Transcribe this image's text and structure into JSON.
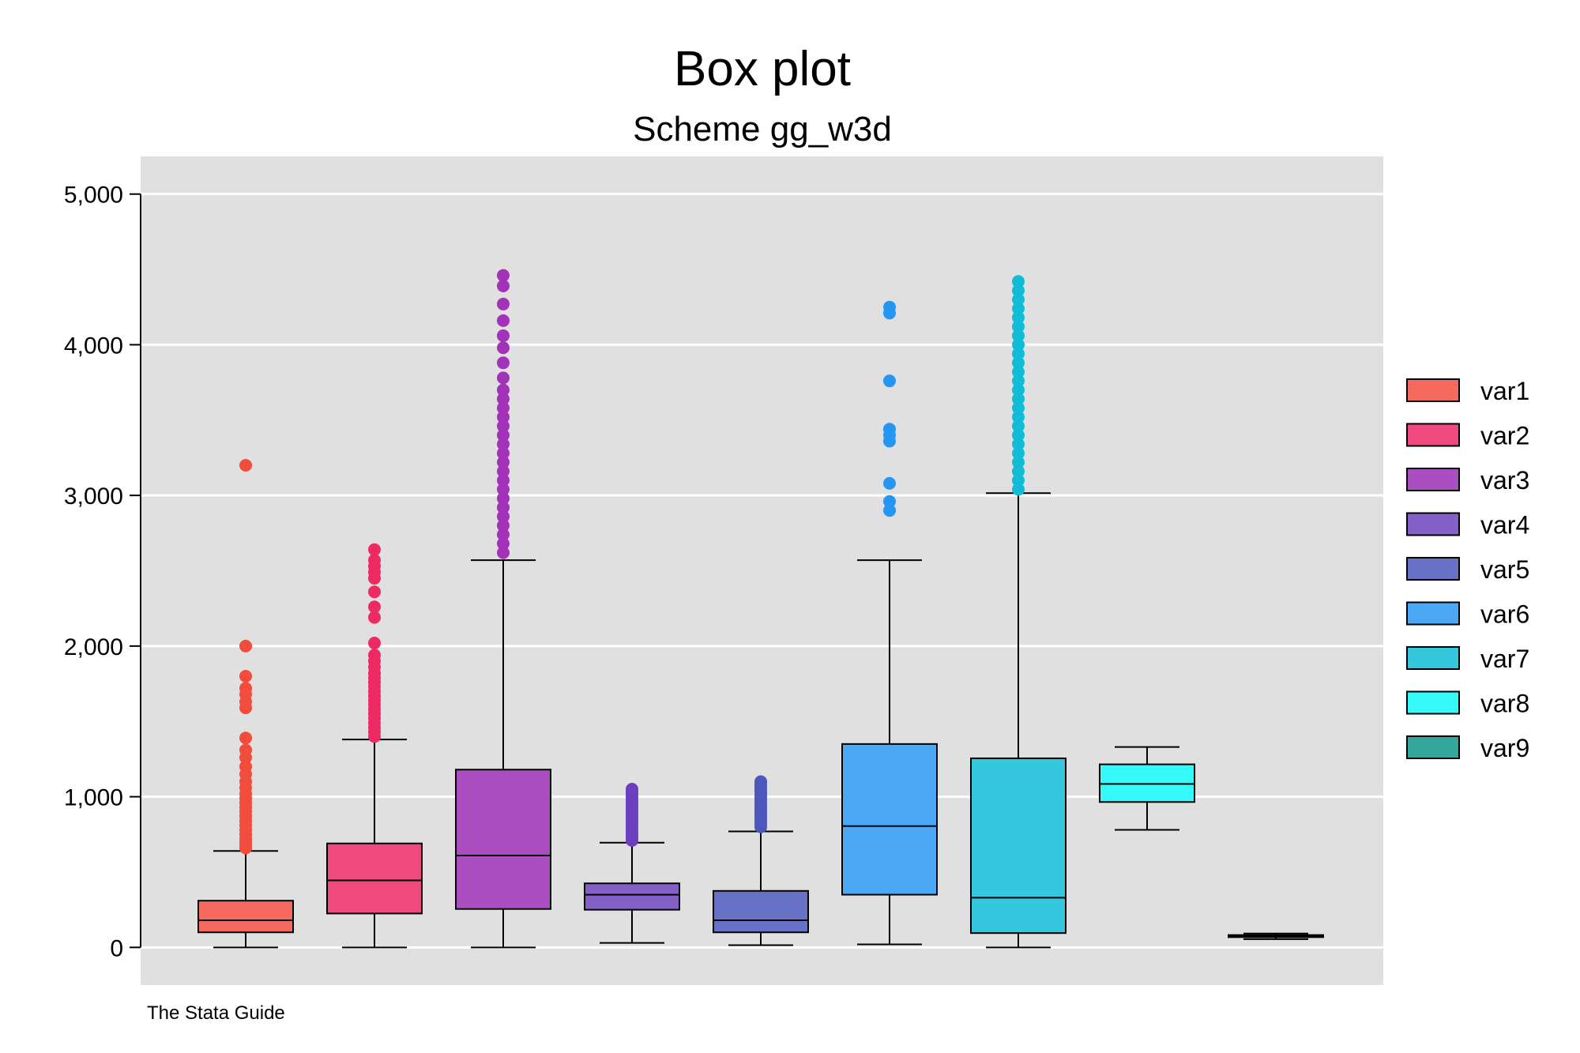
{
  "chart_data": {
    "type": "box",
    "title": "Box plot",
    "subtitle": "Scheme gg_w3d",
    "note": "The Stata Guide",
    "ylim": [
      -250,
      5250
    ],
    "yticks": [
      0,
      1000,
      2000,
      3000,
      4000,
      5000
    ],
    "ytick_labels": [
      "0",
      "1,000",
      "2,000",
      "3,000",
      "4,000",
      "5,000"
    ],
    "grid": true,
    "legend_position": "right",
    "colors": {
      "panel_bg": "#e0e0e0",
      "gridline": "#ffffff",
      "axis": "#000000"
    },
    "series": [
      {
        "name": "var1",
        "box_color": "#f5695e",
        "point_color": "#f24c3d",
        "min": 0,
        "q1": 100,
        "median": 180,
        "q3": 310,
        "whisker_high": 640,
        "outliers": [
          660,
          680,
          700,
          720,
          750,
          780,
          810,
          840,
          870,
          900,
          930,
          960,
          990,
          1020,
          1060,
          1100,
          1150,
          1200,
          1260,
          1310,
          1390,
          1590,
          1630,
          1680,
          1720,
          1800,
          2000,
          3200
        ]
      },
      {
        "name": "var2",
        "box_color": "#ef4a7f",
        "point_color": "#ee2a63",
        "min": 0,
        "q1": 225,
        "median": 445,
        "q3": 690,
        "whisker_high": 1380,
        "outliers": [
          1400,
          1430,
          1460,
          1490,
          1520,
          1550,
          1580,
          1610,
          1640,
          1670,
          1700,
          1730,
          1760,
          1790,
          1820,
          1860,
          1900,
          1940,
          2020,
          2190,
          2260,
          2360,
          2450,
          2490,
          2530,
          2570,
          2640
        ]
      },
      {
        "name": "var3",
        "box_color": "#ab4ec1",
        "point_color": "#a232b8",
        "min": 0,
        "q1": 255,
        "median": 610,
        "q3": 1180,
        "whisker_high": 2570,
        "outliers": [
          2620,
          2680,
          2740,
          2800,
          2860,
          2920,
          2980,
          3040,
          3100,
          3160,
          3220,
          3280,
          3340,
          3400,
          3460,
          3520,
          3580,
          3640,
          3700,
          3780,
          3880,
          3980,
          4060,
          4160,
          4270,
          4390,
          4460
        ]
      },
      {
        "name": "var4",
        "box_color": "#8461c6",
        "point_color": "#6c3fbe",
        "min": 30,
        "q1": 250,
        "median": 350,
        "q3": 425,
        "whisker_high": 695,
        "outliers": [
          710,
          730,
          750,
          770,
          790,
          810,
          830,
          850,
          870,
          890,
          910,
          930,
          950,
          970,
          990,
          1010,
          1030,
          1050
        ]
      },
      {
        "name": "var5",
        "box_color": "#6771c6",
        "point_color": "#4b57bd",
        "min": 15,
        "q1": 100,
        "median": 180,
        "q3": 375,
        "whisker_high": 770,
        "outliers": [
          800,
          820,
          840,
          860,
          880,
          900,
          920,
          940,
          960,
          980,
          1000,
          1020,
          1040,
          1060,
          1080,
          1100
        ]
      },
      {
        "name": "var6",
        "box_color": "#4ba8f6",
        "point_color": "#2596f3",
        "min": 20,
        "q1": 350,
        "median": 805,
        "q3": 1350,
        "whisker_high": 2570,
        "outliers": [
          2900,
          2960,
          3080,
          3360,
          3400,
          3440,
          3760,
          4210,
          4250
        ]
      },
      {
        "name": "var7",
        "box_color": "#34c7de",
        "point_color": "#12bcd6",
        "min": 0,
        "q1": 95,
        "median": 330,
        "q3": 1255,
        "whisker_high": 3015,
        "outliers": [
          3040,
          3100,
          3160,
          3220,
          3280,
          3340,
          3400,
          3460,
          3520,
          3580,
          3640,
          3700,
          3760,
          3820,
          3880,
          3940,
          4000,
          4060,
          4120,
          4180,
          4240,
          4300,
          4360,
          4420
        ]
      },
      {
        "name": "var8",
        "box_color": "#36fafa",
        "point_color": "#16f7f7",
        "min": 780,
        "q1": 965,
        "median": 1085,
        "q3": 1215,
        "whisker_high": 1330,
        "outliers": []
      },
      {
        "name": "var9",
        "box_color": "#35a69b",
        "point_color": "#179a8d",
        "min": 55,
        "q1": 68,
        "median": 75,
        "q3": 82,
        "whisker_high": 92,
        "outliers": []
      }
    ]
  }
}
